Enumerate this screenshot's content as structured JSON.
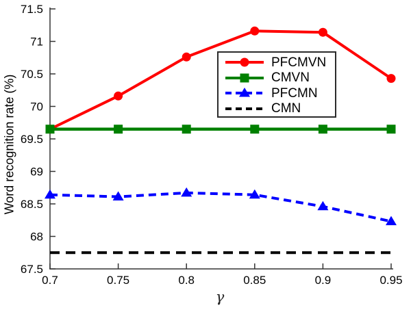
{
  "chart_data": {
    "type": "line",
    "title": "",
    "xlabel": "γ",
    "ylabel": "Word recognition rate (%)",
    "xlim": [
      0.7,
      0.95
    ],
    "ylim": [
      67.5,
      71.5
    ],
    "xticks": [
      0.7,
      0.75,
      0.8,
      0.85,
      0.9,
      0.95
    ],
    "yticks": [
      67.5,
      68,
      68.5,
      69,
      69.5,
      70,
      70.5,
      71,
      71.5
    ],
    "grid": false,
    "legend_position": "inside-upper-right",
    "x": [
      0.7,
      0.75,
      0.8,
      0.85,
      0.9,
      0.95
    ],
    "series": [
      {
        "name": "PFCMVN",
        "color": "#ff0000",
        "line_style": "solid",
        "marker": "circle",
        "values": [
          69.65,
          70.16,
          70.76,
          71.16,
          71.14,
          70.43
        ]
      },
      {
        "name": "CMVN",
        "color": "#008000",
        "line_style": "solid",
        "marker": "square",
        "values": [
          69.65,
          69.65,
          69.65,
          69.65,
          69.65,
          69.65
        ]
      },
      {
        "name": "PFCMN",
        "color": "#0000ff",
        "line_style": "dashed",
        "marker": "triangle",
        "values": [
          68.64,
          68.61,
          68.67,
          68.64,
          68.46,
          68.23
        ]
      },
      {
        "name": "CMN",
        "color": "#000000",
        "line_style": "dashed",
        "marker": "none",
        "values": [
          67.75,
          67.75,
          67.75,
          67.75,
          67.75,
          67.75
        ]
      }
    ]
  }
}
